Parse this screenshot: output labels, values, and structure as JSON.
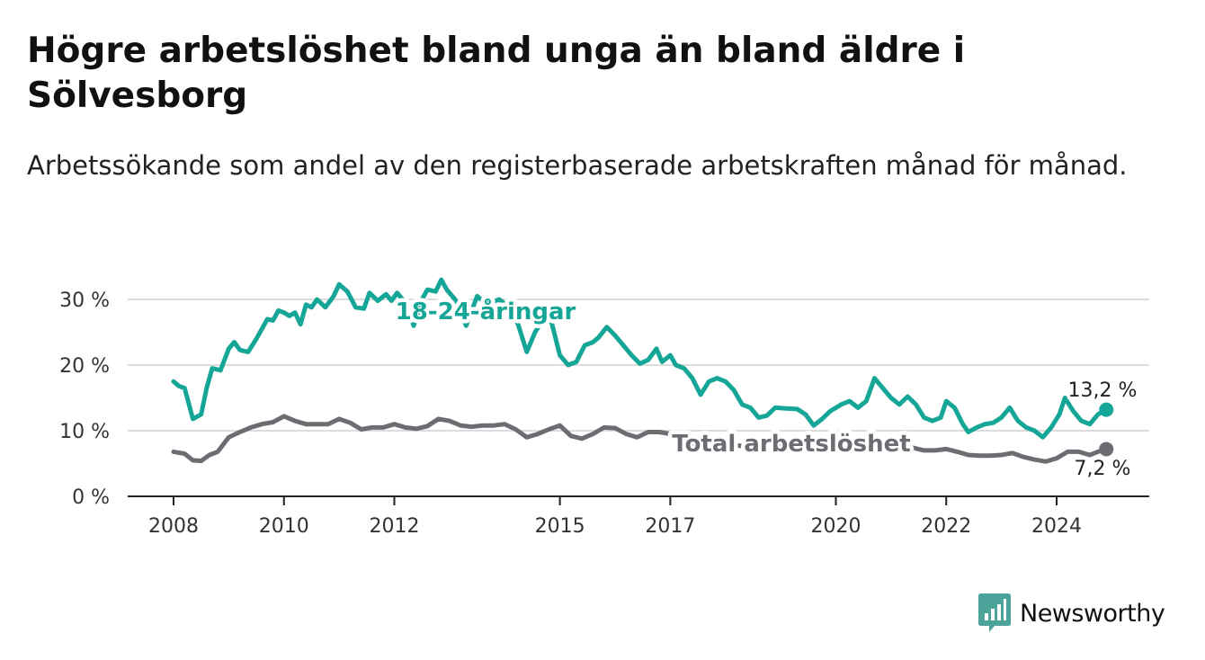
{
  "title": "Högre arbetslöshet bland unga än bland äldre i Sölvesborg",
  "subtitle": "Arbetssökande som andel av den registerbaserade arbetskraften månad för månad.",
  "brand": {
    "name": "Newsworthy",
    "icon": "bar-chart-speech-bubble-icon",
    "color": "#4ba39a"
  },
  "colors": {
    "youth": "#16a697",
    "total": "#6e6c73",
    "grid": "#dcdcdc",
    "axis": "#222222"
  },
  "chart_data": {
    "type": "line",
    "title": "Högre arbetslöshet bland unga än bland äldre i Sölvesborg",
    "subtitle": "Arbetssökande som andel av den registerbaserade arbetskraften månad för månad.",
    "ylim": [
      0,
      32
    ],
    "grid": true,
    "y_ticks": [
      {
        "value": 0,
        "label": "0 %"
      },
      {
        "value": 10,
        "label": "10 %"
      },
      {
        "value": 20,
        "label": "20 %"
      },
      {
        "value": 30,
        "label": "30 %"
      }
    ],
    "x_ticks": [
      {
        "value": 2008,
        "label": "2008"
      },
      {
        "value": 2010,
        "label": "2010"
      },
      {
        "value": 2012,
        "label": "2012"
      },
      {
        "value": 2015,
        "label": "2015"
      },
      {
        "value": 2017,
        "label": "2017"
      },
      {
        "value": 2020,
        "label": "2020"
      },
      {
        "value": 2022,
        "label": "2022"
      },
      {
        "value": 2024,
        "label": "2024"
      }
    ],
    "series": [
      {
        "name": "18-24-åringar",
        "color": "#16a697",
        "end_label": "13,2 %",
        "points": [
          [
            2008.0,
            17.5
          ],
          [
            2008.1,
            16.8
          ],
          [
            2008.2,
            16.5
          ],
          [
            2008.35,
            11.8
          ],
          [
            2008.5,
            12.5
          ],
          [
            2008.6,
            16.5
          ],
          [
            2008.7,
            19.5
          ],
          [
            2008.85,
            19.2
          ],
          [
            2009.0,
            22.5
          ],
          [
            2009.1,
            23.5
          ],
          [
            2009.2,
            22.3
          ],
          [
            2009.35,
            22.0
          ],
          [
            2009.5,
            24.0
          ],
          [
            2009.6,
            25.5
          ],
          [
            2009.7,
            27.0
          ],
          [
            2009.8,
            26.8
          ],
          [
            2009.9,
            28.3
          ],
          [
            2010.0,
            28.0
          ],
          [
            2010.1,
            27.5
          ],
          [
            2010.2,
            28.0
          ],
          [
            2010.3,
            26.2
          ],
          [
            2010.4,
            29.2
          ],
          [
            2010.5,
            28.8
          ],
          [
            2010.6,
            30.0
          ],
          [
            2010.75,
            28.8
          ],
          [
            2010.9,
            30.5
          ],
          [
            2011.0,
            32.3
          ],
          [
            2011.15,
            31.2
          ],
          [
            2011.3,
            28.8
          ],
          [
            2011.45,
            28.6
          ],
          [
            2011.55,
            31.0
          ],
          [
            2011.7,
            29.8
          ],
          [
            2011.85,
            30.8
          ],
          [
            2011.95,
            29.8
          ],
          [
            2012.05,
            31.0
          ],
          [
            2012.2,
            29.5
          ],
          [
            2012.35,
            26.0
          ],
          [
            2012.5,
            30.0
          ],
          [
            2012.6,
            31.5
          ],
          [
            2012.75,
            31.2
          ],
          [
            2012.85,
            33.0
          ],
          [
            2012.95,
            31.5
          ],
          [
            2013.1,
            30.0
          ],
          [
            2013.3,
            26.0
          ],
          [
            2013.5,
            30.5
          ],
          [
            2013.6,
            29.8
          ],
          [
            2013.75,
            29.5
          ],
          [
            2013.9,
            30.0
          ],
          [
            2014.05,
            29.0
          ],
          [
            2014.15,
            28.0
          ],
          [
            2014.25,
            26.0
          ],
          [
            2014.4,
            22.0
          ],
          [
            2014.55,
            25.0
          ],
          [
            2014.7,
            27.0
          ],
          [
            2014.85,
            26.5
          ],
          [
            2015.0,
            21.5
          ],
          [
            2015.15,
            20.0
          ],
          [
            2015.3,
            20.5
          ],
          [
            2015.45,
            23.0
          ],
          [
            2015.6,
            23.5
          ],
          [
            2015.7,
            24.2
          ],
          [
            2015.85,
            25.8
          ],
          [
            2016.0,
            24.5
          ],
          [
            2016.15,
            23.0
          ],
          [
            2016.3,
            21.5
          ],
          [
            2016.45,
            20.2
          ],
          [
            2016.6,
            20.8
          ],
          [
            2016.75,
            22.5
          ],
          [
            2016.85,
            20.5
          ],
          [
            2017.0,
            21.5
          ],
          [
            2017.1,
            20.0
          ],
          [
            2017.25,
            19.5
          ],
          [
            2017.4,
            18.0
          ],
          [
            2017.55,
            15.5
          ],
          [
            2017.7,
            17.5
          ],
          [
            2017.85,
            18.0
          ],
          [
            2018.0,
            17.5
          ],
          [
            2018.15,
            16.2
          ],
          [
            2018.3,
            14.0
          ],
          [
            2018.45,
            13.5
          ],
          [
            2018.6,
            12.0
          ],
          [
            2018.75,
            12.3
          ],
          [
            2018.9,
            13.5
          ],
          [
            2019.1,
            13.4
          ],
          [
            2019.3,
            13.3
          ],
          [
            2019.45,
            12.5
          ],
          [
            2019.6,
            10.8
          ],
          [
            2019.75,
            11.8
          ],
          [
            2019.9,
            13.0
          ],
          [
            2020.1,
            14.0
          ],
          [
            2020.25,
            14.5
          ],
          [
            2020.4,
            13.5
          ],
          [
            2020.55,
            14.5
          ],
          [
            2020.7,
            18.0
          ],
          [
            2020.85,
            16.5
          ],
          [
            2021.0,
            15.0
          ],
          [
            2021.15,
            14.0
          ],
          [
            2021.3,
            15.2
          ],
          [
            2021.45,
            14.0
          ],
          [
            2021.6,
            12.0
          ],
          [
            2021.75,
            11.5
          ],
          [
            2021.9,
            12.0
          ],
          [
            2022.0,
            14.5
          ],
          [
            2022.15,
            13.5
          ],
          [
            2022.3,
            11.0
          ],
          [
            2022.4,
            9.8
          ],
          [
            2022.55,
            10.5
          ],
          [
            2022.7,
            11.0
          ],
          [
            2022.85,
            11.2
          ],
          [
            2023.0,
            12.0
          ],
          [
            2023.15,
            13.5
          ],
          [
            2023.3,
            11.5
          ],
          [
            2023.45,
            10.5
          ],
          [
            2023.6,
            10.0
          ],
          [
            2023.75,
            9.0
          ],
          [
            2023.9,
            10.5
          ],
          [
            2024.05,
            12.5
          ],
          [
            2024.15,
            15.0
          ],
          [
            2024.3,
            13.0
          ],
          [
            2024.45,
            11.5
          ],
          [
            2024.6,
            11.0
          ],
          [
            2024.75,
            12.5
          ],
          [
            2024.9,
            13.2
          ]
        ]
      },
      {
        "name": "Total arbetslöshet",
        "color": "#6e6c73",
        "end_label": "7,2 %",
        "points": [
          [
            2008.0,
            6.8
          ],
          [
            2008.2,
            6.5
          ],
          [
            2008.35,
            5.5
          ],
          [
            2008.5,
            5.4
          ],
          [
            2008.65,
            6.3
          ],
          [
            2008.8,
            6.8
          ],
          [
            2009.0,
            9.0
          ],
          [
            2009.2,
            9.8
          ],
          [
            2009.4,
            10.5
          ],
          [
            2009.6,
            11.0
          ],
          [
            2009.8,
            11.3
          ],
          [
            2010.0,
            12.2
          ],
          [
            2010.2,
            11.5
          ],
          [
            2010.4,
            11.0
          ],
          [
            2010.6,
            11.0
          ],
          [
            2010.8,
            11.0
          ],
          [
            2011.0,
            11.8
          ],
          [
            2011.2,
            11.2
          ],
          [
            2011.4,
            10.2
          ],
          [
            2011.6,
            10.5
          ],
          [
            2011.8,
            10.5
          ],
          [
            2012.0,
            11.0
          ],
          [
            2012.2,
            10.5
          ],
          [
            2012.4,
            10.3
          ],
          [
            2012.6,
            10.7
          ],
          [
            2012.8,
            11.8
          ],
          [
            2013.0,
            11.5
          ],
          [
            2013.2,
            10.8
          ],
          [
            2013.4,
            10.6
          ],
          [
            2013.6,
            10.8
          ],
          [
            2013.8,
            10.8
          ],
          [
            2014.0,
            11.0
          ],
          [
            2014.2,
            10.2
          ],
          [
            2014.4,
            9.0
          ],
          [
            2014.6,
            9.5
          ],
          [
            2014.8,
            10.2
          ],
          [
            2015.0,
            10.8
          ],
          [
            2015.2,
            9.2
          ],
          [
            2015.4,
            8.8
          ],
          [
            2015.6,
            9.5
          ],
          [
            2015.8,
            10.5
          ],
          [
            2016.0,
            10.4
          ],
          [
            2016.2,
            9.5
          ],
          [
            2016.4,
            9.0
          ],
          [
            2016.6,
            9.8
          ],
          [
            2016.8,
            9.8
          ],
          [
            2017.0,
            9.5
          ],
          [
            2017.2,
            8.5
          ],
          [
            2017.4,
            8.0
          ],
          [
            2017.6,
            8.5
          ],
          [
            2017.8,
            8.2
          ],
          [
            2018.0,
            8.0
          ],
          [
            2018.2,
            7.8
          ],
          [
            2018.4,
            7.5
          ],
          [
            2018.6,
            7.5
          ],
          [
            2018.8,
            7.8
          ],
          [
            2019.0,
            7.5
          ],
          [
            2019.2,
            7.4
          ],
          [
            2019.4,
            7.5
          ],
          [
            2019.6,
            7.6
          ],
          [
            2019.8,
            7.8
          ],
          [
            2020.0,
            8.0
          ],
          [
            2020.2,
            8.3
          ],
          [
            2020.4,
            8.5
          ],
          [
            2020.6,
            9.0
          ],
          [
            2020.8,
            8.4
          ],
          [
            2021.0,
            8.0
          ],
          [
            2021.2,
            7.8
          ],
          [
            2021.4,
            7.4
          ],
          [
            2021.6,
            7.0
          ],
          [
            2021.8,
            7.0
          ],
          [
            2022.0,
            7.2
          ],
          [
            2022.2,
            6.8
          ],
          [
            2022.4,
            6.3
          ],
          [
            2022.6,
            6.2
          ],
          [
            2022.8,
            6.2
          ],
          [
            2023.0,
            6.3
          ],
          [
            2023.2,
            6.6
          ],
          [
            2023.4,
            6.0
          ],
          [
            2023.6,
            5.6
          ],
          [
            2023.8,
            5.3
          ],
          [
            2024.0,
            5.8
          ],
          [
            2024.2,
            6.8
          ],
          [
            2024.4,
            6.8
          ],
          [
            2024.6,
            6.3
          ],
          [
            2024.75,
            6.8
          ],
          [
            2024.9,
            7.2
          ]
        ]
      }
    ]
  }
}
